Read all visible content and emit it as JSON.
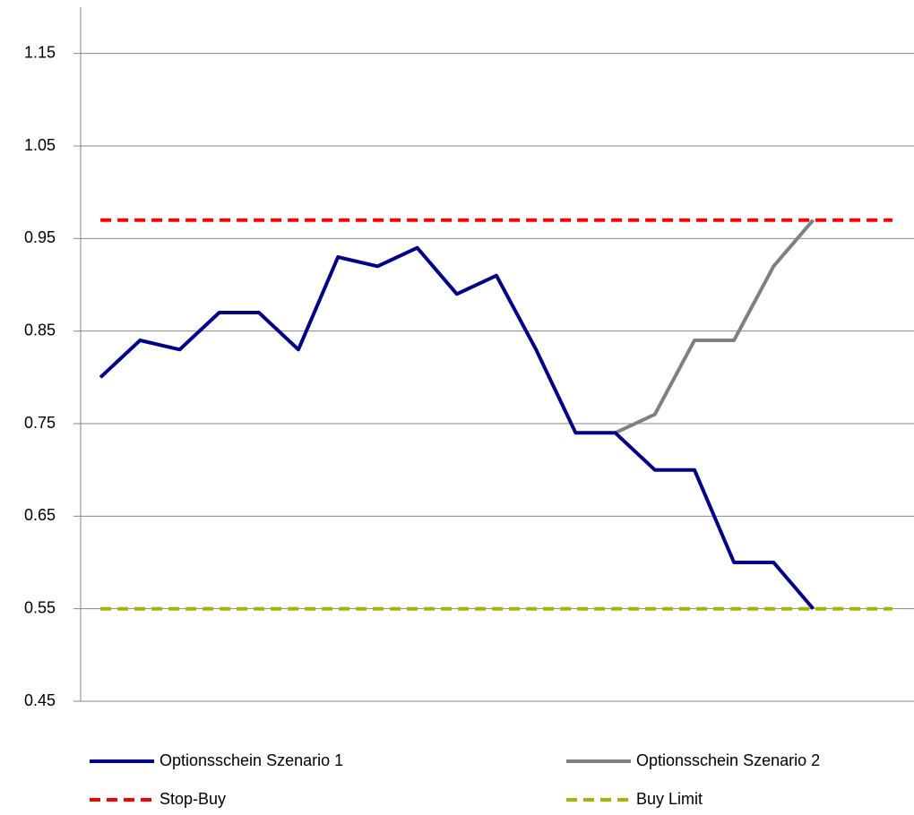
{
  "chart_data": {
    "type": "line",
    "categories": [
      null,
      null,
      null,
      null,
      null,
      null,
      null,
      null,
      null,
      null,
      null,
      null,
      null,
      null,
      null,
      null,
      null,
      null,
      null,
      null,
      null
    ],
    "series": [
      {
        "name": "Optionsschein Szenario 1",
        "color": "#00008b",
        "dashed": false,
        "values": [
          0.8,
          0.84,
          0.83,
          0.87,
          0.87,
          0.83,
          0.93,
          0.92,
          0.94,
          0.89,
          0.91,
          0.83,
          0.74,
          0.74,
          0.7,
          0.7,
          0.6,
          0.6,
          0.55,
          null,
          null
        ]
      },
      {
        "name": "Optionsschein Szenario 2",
        "color": "#808080",
        "dashed": false,
        "values": [
          null,
          null,
          null,
          null,
          null,
          null,
          null,
          null,
          null,
          null,
          null,
          null,
          null,
          0.74,
          0.76,
          0.84,
          0.84,
          0.92,
          0.97,
          null,
          null
        ]
      },
      {
        "name": "Stop-Buy",
        "color": "#ff0000",
        "dashed": true,
        "values": [
          0.97,
          0.97,
          0.97,
          0.97,
          0.97,
          0.97,
          0.97,
          0.97,
          0.97,
          0.97,
          0.97,
          0.97,
          0.97,
          0.97,
          0.97,
          0.97,
          0.97,
          0.97,
          0.97,
          0.97,
          0.97
        ]
      },
      {
        "name": "Buy Limit",
        "color": "#a8b400",
        "dashed": true,
        "values": [
          0.55,
          0.55,
          0.55,
          0.55,
          0.55,
          0.55,
          0.55,
          0.55,
          0.55,
          0.55,
          0.55,
          0.55,
          0.55,
          0.55,
          0.55,
          0.55,
          0.55,
          0.55,
          0.55,
          0.55,
          0.55
        ]
      }
    ],
    "ylim": [
      0.45,
      1.2
    ],
    "yticks": [
      0.45,
      0.55,
      0.65,
      0.75,
      0.85,
      0.95,
      1.05,
      1.15
    ],
    "grid": true
  }
}
